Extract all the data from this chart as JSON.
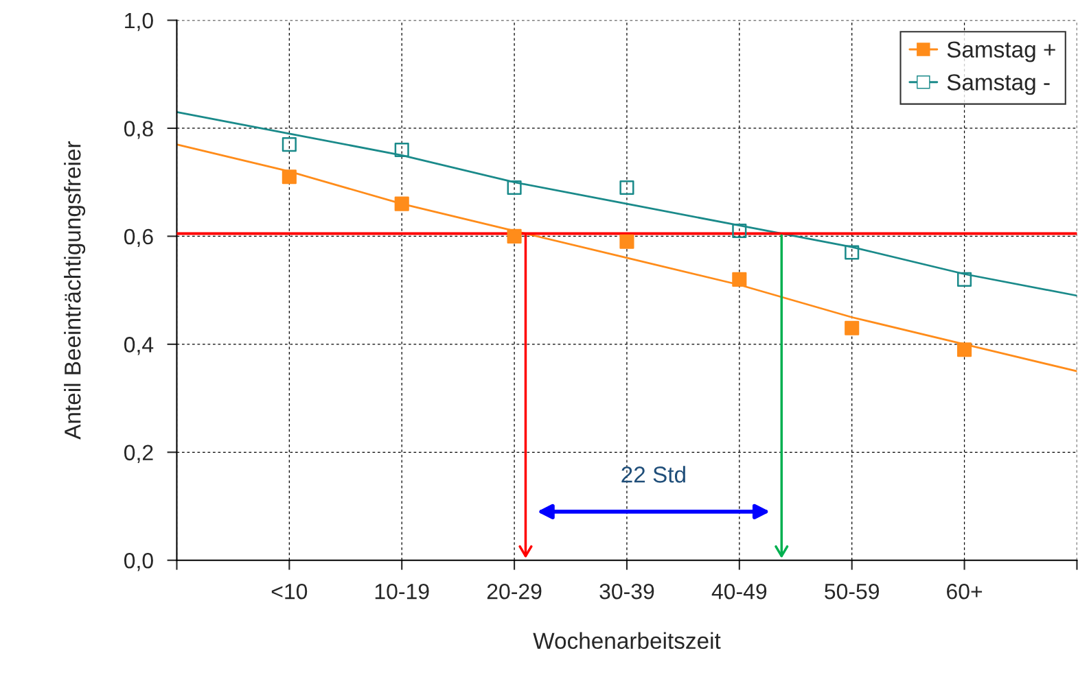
{
  "chart_data": {
    "type": "line",
    "xlabel": "Wochenarbeitszeit",
    "ylabel": "Anteil Beeinträchtigungsfreier",
    "categories": [
      null,
      "<10",
      "10-19",
      "20-29",
      "30-39",
      "40-49",
      "50-59",
      "60+",
      null
    ],
    "ylim": [
      0,
      1
    ],
    "yticks": [
      {
        "value": 0,
        "label": "0,0"
      },
      {
        "value": 0.2,
        "label": "0,2"
      },
      {
        "value": 0.4,
        "label": "0,4"
      },
      {
        "value": 0.6,
        "label": "0,6"
      },
      {
        "value": 0.8,
        "label": "0,8"
      },
      {
        "value": 1.0,
        "label": "1,0"
      }
    ],
    "grid": true,
    "legend": "top right",
    "series": [
      {
        "color": "#ff8c1a",
        "values": [
          0.77,
          0.72,
          0.66,
          0.61,
          0.56,
          0.51,
          0.45,
          0.4,
          0.35
        ],
        "marker": "none"
      },
      {
        "color": "#1a8a8a",
        "values": [
          0.83,
          0.79,
          0.75,
          0.7,
          0.66,
          0.62,
          0.58,
          0.53,
          0.49
        ],
        "marker": "none"
      },
      {
        "type": "scatter",
        "name": "Samstag +",
        "color": "#ff8c1a",
        "values": [
          null,
          0.71,
          0.66,
          0.6,
          0.59,
          0.52,
          0.43,
          0.39,
          null
        ],
        "marker": "square"
      },
      {
        "type": "scatter",
        "name": "Samstag -",
        "color": "#1a8a8a",
        "values": [
          null,
          0.77,
          0.76,
          0.69,
          0.69,
          0.61,
          0.57,
          0.52,
          null
        ],
        "marker": "square"
      }
    ],
    "ref_lines": [
      {
        "axis": "y",
        "value": 0.605,
        "color": "#ff0000"
      }
    ],
    "annotations": [
      "22 Std"
    ]
  }
}
